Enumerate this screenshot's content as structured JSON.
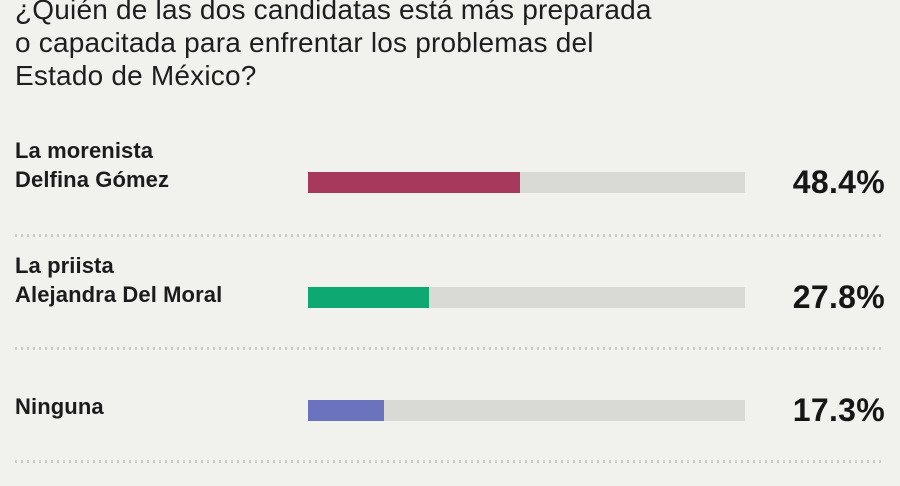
{
  "title": {
    "lines": [
      "¿Quién de las dos candidatas está más preparada",
      "o capacitada para enfrentar los problemas del",
      "Estado de México?"
    ]
  },
  "colors": {
    "background": "#F1F1EE",
    "bar_track": "#D9DAD6",
    "label_text": "#1C1C1C",
    "separator_dots": "#CBCBC7"
  },
  "chart_data": {
    "type": "bar",
    "orientation": "horizontal",
    "title": "¿Quién de las dos candidatas está más preparada o capacitada para enfrentar los problemas del Estado de México?",
    "categories": [
      "La morenista Delfina Gómez",
      "La priista Alejandra Del Moral",
      "Ninguna"
    ],
    "values": [
      48.4,
      27.8,
      17.3
    ],
    "value_labels": [
      "48.4%",
      "27.8%",
      "17.3%"
    ],
    "bar_colors": [
      "#A73A5C",
      "#0EA873",
      "#6B73BE"
    ],
    "xlim": [
      0,
      100
    ],
    "grid": false,
    "legend": false,
    "rows": [
      {
        "label_line1": "La morenista",
        "label_line2": "Delfina Gómez",
        "value": 48.4,
        "pct": "48.4%",
        "color": "#A73A5C"
      },
      {
        "label_line1": "La priista",
        "label_line2": "Alejandra Del Moral",
        "value": 27.8,
        "pct": "27.8%",
        "color": "#0EA873"
      },
      {
        "label_line1": "Ninguna",
        "value": 17.3,
        "pct": "17.3%",
        "color": "#6B73BE"
      }
    ]
  }
}
